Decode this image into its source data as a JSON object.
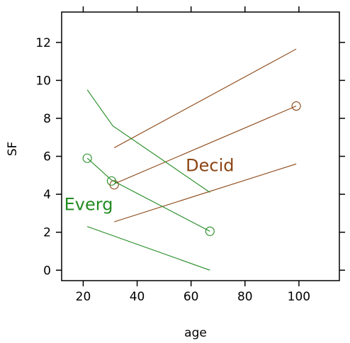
{
  "chart_data": {
    "type": "line",
    "xlabel": "age",
    "ylabel": "SF",
    "xlim": [
      12,
      115
    ],
    "ylim": [
      -0.55,
      13.6
    ],
    "x_ticks": [
      20,
      40,
      60,
      80,
      100
    ],
    "y_ticks": [
      0,
      2,
      4,
      6,
      8,
      10,
      12
    ],
    "grid": false,
    "series": [
      {
        "name": "Decid",
        "color": "#8B4513",
        "label_at": [
          67,
          5.55
        ],
        "lines": [
          {
            "role": "upper",
            "points": [
              [
                31.5,
                6.45
              ],
              [
                99,
                11.65
              ]
            ]
          },
          {
            "role": "fit",
            "points": [
              [
                31.5,
                4.55
              ],
              [
                99,
                8.65
              ]
            ]
          },
          {
            "role": "lower",
            "points": [
              [
                31.5,
                2.55
              ],
              [
                99,
                5.6
              ]
            ]
          }
        ],
        "points": [
          [
            31.5,
            4.5
          ],
          [
            99,
            8.65
          ]
        ]
      },
      {
        "name": "Everg",
        "color": "#228B22",
        "label_at": [
          22,
          3.5
        ],
        "lines": [
          {
            "role": "upper",
            "points": [
              [
                21.5,
                9.5
              ],
              [
                31,
                7.6
              ],
              [
                67,
                4.1
              ]
            ]
          },
          {
            "role": "fit",
            "points": [
              [
                21.5,
                5.9
              ],
              [
                30.5,
                4.75
              ],
              [
                67,
                2.05
              ]
            ]
          },
          {
            "role": "lower",
            "points": [
              [
                21.5,
                2.3
              ],
              [
                67,
                0.0
              ]
            ]
          }
        ],
        "points": [
          [
            21.5,
            5.9
          ],
          [
            30.5,
            4.7
          ],
          [
            67,
            2.05
          ]
        ]
      }
    ]
  }
}
